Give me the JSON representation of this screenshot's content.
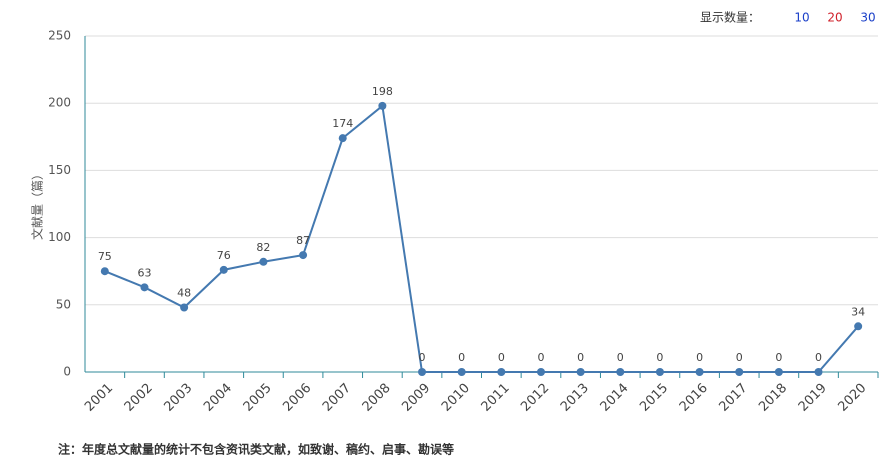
{
  "controls": {
    "label": "显示数量：",
    "options": [
      "10",
      "20",
      "30"
    ],
    "option_colors": [
      "#1a3fc8",
      "#d0202a",
      "#1a3fc8"
    ]
  },
  "chart_data": {
    "type": "line",
    "y_label": "文献量（篇）",
    "categories": [
      "2001",
      "2002",
      "2003",
      "2004",
      "2005",
      "2006",
      "2007",
      "2008",
      "2009",
      "2010",
      "2011",
      "2012",
      "2013",
      "2014",
      "2015",
      "2016",
      "2017",
      "2018",
      "2019",
      "2020"
    ],
    "values": [
      75,
      63,
      48,
      76,
      82,
      87,
      174,
      198,
      0,
      0,
      0,
      0,
      0,
      0,
      0,
      0,
      0,
      0,
      0,
      34
    ],
    "color": "#4479b0",
    "ylim": [
      0,
      250
    ],
    "yticks": [
      0,
      50,
      100,
      150,
      200,
      250
    ],
    "grid": true
  },
  "footnote": "注：年度总文献量的统计不包含资讯类文献，如致谢、稿约、启事、勘误等"
}
